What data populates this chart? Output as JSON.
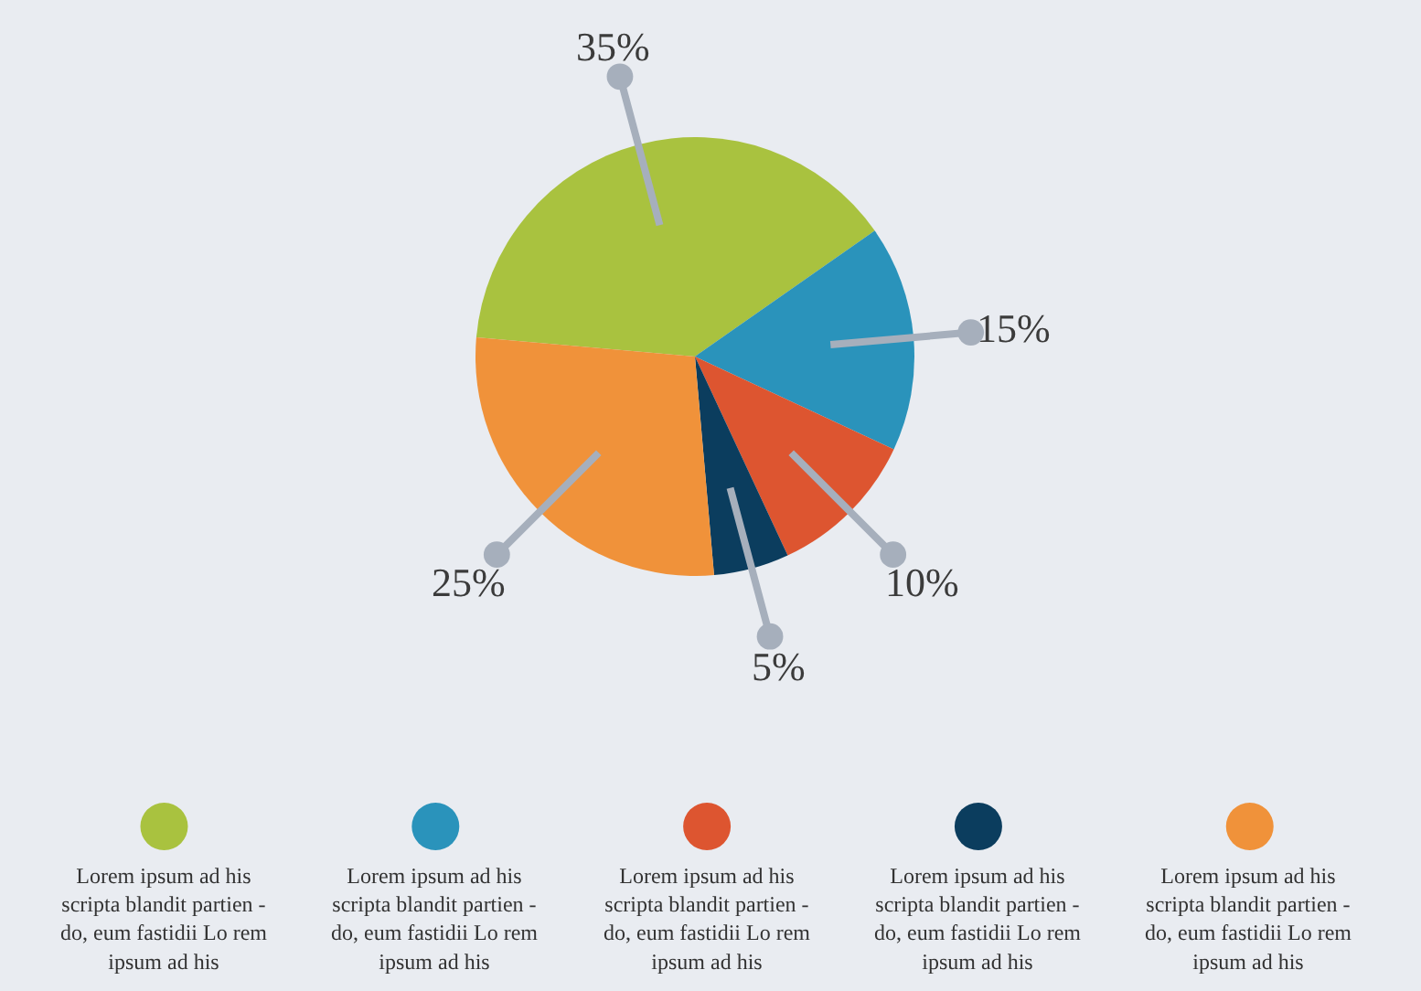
{
  "chart_data": {
    "type": "pie",
    "categories": [
      "Lorem ipsum ad his scripta blandit partien - do, eum fastidii Lo rem ipsum ad his",
      "Lorem ipsum ad his scripta blandit partien - do, eum fastidii Lo rem ipsum ad his",
      "Lorem ipsum ad his scripta blandit partien - do, eum fastidii Lo rem ipsum ad his",
      "Lorem ipsum ad his scripta blandit partien - do, eum fastidii Lo rem ipsum ad his",
      "Lorem ipsum ad his scripta blandit partien - do, eum fastidii Lo rem ipsum ad his"
    ],
    "values": [
      35,
      15,
      10,
      5,
      25
    ],
    "colors": [
      "#a9c23f",
      "#2a93bb",
      "#dd5530",
      "#0b3d5e",
      "#f0923a"
    ],
    "value_labels": [
      "35%",
      "15%",
      "10%",
      "5%",
      "25%"
    ],
    "legend": "bottom"
  }
}
